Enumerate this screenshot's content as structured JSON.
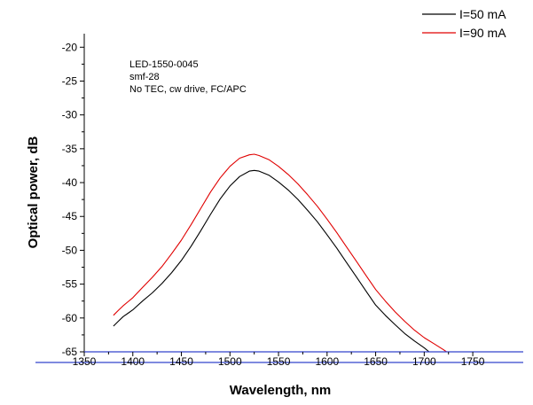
{
  "chart_data": {
    "type": "line",
    "title": "",
    "xlabel": "Wavelength, nm",
    "ylabel": "Optical power, dB",
    "xlim": [
      1350,
      1770
    ],
    "ylim": [
      -65,
      -18
    ],
    "xticks": [
      1350,
      1400,
      1450,
      1500,
      1550,
      1600,
      1650,
      1700,
      1750
    ],
    "yticks": [
      -65,
      -60,
      -55,
      -50,
      -45,
      -40,
      -35,
      -30,
      -25,
      -20
    ],
    "annotations": [
      "LED-1550-0045",
      "smf-28",
      "No TEC, cw drive, FC/APC"
    ],
    "legend_position": "top-right",
    "grid": false,
    "series": [
      {
        "name": "I=50 mA",
        "color": "#000000",
        "x": [
          1380,
          1385,
          1390,
          1395,
          1400,
          1410,
          1420,
          1430,
          1440,
          1450,
          1460,
          1470,
          1480,
          1490,
          1500,
          1510,
          1520,
          1525,
          1530,
          1540,
          1550,
          1560,
          1570,
          1580,
          1590,
          1600,
          1610,
          1620,
          1630,
          1640,
          1650,
          1660,
          1670,
          1680,
          1690,
          1700,
          1705
        ],
        "y": [
          -61.2,
          -60.5,
          -59.8,
          -59.3,
          -58.8,
          -57.5,
          -56.3,
          -54.9,
          -53.3,
          -51.5,
          -49.4,
          -47.1,
          -44.7,
          -42.4,
          -40.5,
          -39.1,
          -38.3,
          -38.2,
          -38.3,
          -38.9,
          -39.9,
          -41.1,
          -42.5,
          -44.1,
          -45.8,
          -47.7,
          -49.7,
          -51.8,
          -53.9,
          -56.0,
          -58.1,
          -59.6,
          -61.0,
          -62.3,
          -63.4,
          -64.4,
          -65.0
        ]
      },
      {
        "name": "I=90 mA",
        "color": "#e00000",
        "x": [
          1380,
          1385,
          1390,
          1395,
          1400,
          1410,
          1420,
          1430,
          1440,
          1450,
          1460,
          1470,
          1480,
          1490,
          1500,
          1510,
          1520,
          1525,
          1530,
          1540,
          1550,
          1560,
          1570,
          1580,
          1590,
          1600,
          1610,
          1620,
          1630,
          1640,
          1650,
          1660,
          1670,
          1680,
          1690,
          1700,
          1710,
          1720,
          1723
        ],
        "y": [
          -59.6,
          -58.9,
          -58.2,
          -57.6,
          -57.0,
          -55.5,
          -54.0,
          -52.4,
          -50.5,
          -48.5,
          -46.2,
          -43.8,
          -41.4,
          -39.3,
          -37.6,
          -36.4,
          -35.9,
          -35.8,
          -36.0,
          -36.6,
          -37.6,
          -38.8,
          -40.2,
          -41.8,
          -43.5,
          -45.4,
          -47.4,
          -49.5,
          -51.6,
          -53.7,
          -55.8,
          -57.5,
          -59.1,
          -60.5,
          -61.8,
          -62.9,
          -63.8,
          -64.7,
          -65.0
        ]
      }
    ]
  }
}
